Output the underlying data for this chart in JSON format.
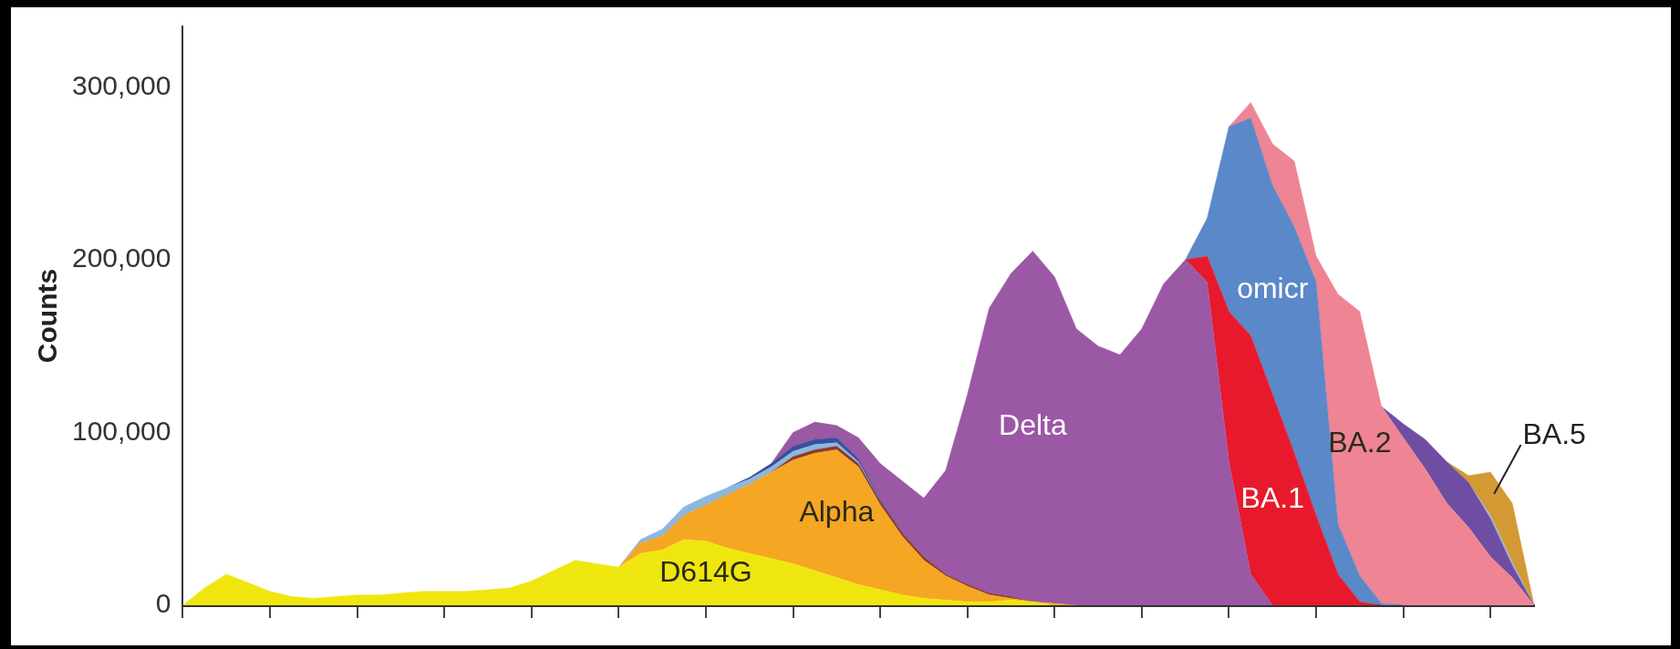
{
  "chart_data": {
    "type": "area",
    "stacked": true,
    "ylabel": "Counts",
    "ylim": [
      0,
      335000
    ],
    "yticks": [
      {
        "value": 0,
        "label": "0"
      },
      {
        "value": 100000,
        "label": "100,000"
      },
      {
        "value": 200000,
        "label": "200,000"
      },
      {
        "value": 300000,
        "label": "300,000"
      }
    ],
    "tick_labels": "y",
    "legend": false,
    "marker": "none",
    "categories": [
      null,
      null,
      null,
      null,
      null,
      null,
      null,
      null,
      null,
      null,
      null,
      null,
      null,
      null,
      null,
      null,
      null,
      null,
      null,
      null,
      null,
      null,
      null,
      null,
      null,
      null,
      null,
      null,
      null,
      null,
      null,
      null,
      null,
      null,
      null,
      null,
      null,
      null,
      null,
      null,
      null,
      null,
      null,
      null,
      null,
      null,
      null,
      null,
      null,
      null,
      null,
      null,
      null,
      null,
      null,
      null,
      null,
      null,
      null,
      null,
      null,
      null,
      null
    ],
    "series": [
      {
        "name": "D614G",
        "color": "#f0e60f",
        "values": [
          0,
          10000,
          18000,
          13000,
          8000,
          5000,
          4000,
          5000,
          6000,
          6000,
          7000,
          8000,
          8000,
          8000,
          9000,
          10000,
          14000,
          20000,
          26000,
          24000,
          22000,
          30000,
          32000,
          38000,
          37000,
          33000,
          30000,
          27000,
          24000,
          20000,
          16000,
          12000,
          9000,
          6000,
          4000,
          3000,
          2000,
          2000,
          3000,
          2000,
          0,
          null,
          null,
          null,
          null,
          null,
          null,
          null,
          null,
          null,
          null,
          null,
          null,
          null,
          null,
          null,
          null,
          null,
          null,
          null,
          null,
          null,
          null
        ]
      },
      {
        "name": "Alpha",
        "color": "#f5a623",
        "values": [
          null,
          null,
          null,
          null,
          null,
          null,
          null,
          null,
          null,
          null,
          null,
          null,
          null,
          null,
          null,
          null,
          null,
          null,
          null,
          null,
          0,
          6000,
          8000,
          14000,
          21000,
          31000,
          40000,
          50000,
          60000,
          68000,
          74000,
          68000,
          49000,
          34000,
          22000,
          14000,
          9000,
          4000,
          1000,
          0,
          1000,
          0,
          null,
          null,
          null,
          null,
          null,
          null,
          null,
          null,
          null,
          null,
          null,
          null,
          null,
          null,
          null,
          null,
          null,
          null,
          null,
          null,
          null
        ]
      },
      {
        "color": "#8b3a2e",
        "values": [
          null,
          null,
          null,
          null,
          null,
          null,
          null,
          null,
          null,
          null,
          null,
          null,
          null,
          null,
          null,
          null,
          null,
          null,
          null,
          null,
          null,
          null,
          null,
          null,
          null,
          null,
          null,
          0,
          2000,
          2000,
          2000,
          2000,
          2000,
          2000,
          2000,
          1000,
          1000,
          1000,
          1000,
          0,
          null,
          null,
          null,
          null,
          null,
          null,
          null,
          null,
          null,
          null,
          null,
          null,
          null,
          null,
          null,
          null,
          null,
          null,
          null,
          null,
          null,
          null,
          null
        ]
      },
      {
        "color": "#8db7dd",
        "values": [
          null,
          null,
          null,
          null,
          null,
          null,
          null,
          null,
          null,
          null,
          null,
          null,
          null,
          null,
          null,
          null,
          null,
          null,
          null,
          null,
          0,
          2000,
          4000,
          5000,
          5000,
          4000,
          3000,
          3000,
          3000,
          3000,
          2000,
          1000,
          0,
          null,
          null,
          null,
          null,
          null,
          null,
          null,
          null,
          null,
          null,
          null,
          null,
          null,
          null,
          null,
          null,
          null,
          null,
          null,
          null,
          null,
          null,
          null,
          null,
          null,
          null,
          null,
          null,
          null,
          null
        ]
      },
      {
        "color": "#3b4e9c",
        "values": [
          null,
          null,
          null,
          null,
          null,
          null,
          null,
          null,
          null,
          null,
          null,
          null,
          null,
          null,
          null,
          null,
          null,
          null,
          null,
          null,
          null,
          null,
          null,
          null,
          null,
          0,
          1000,
          2000,
          3000,
          3000,
          3000,
          2000,
          1000,
          0,
          null,
          null,
          null,
          null,
          null,
          null,
          null,
          null,
          null,
          null,
          null,
          null,
          null,
          null,
          null,
          null,
          null,
          null,
          null,
          null,
          null,
          null,
          null,
          null,
          null,
          null,
          null,
          null,
          null
        ]
      },
      {
        "name": "Delta",
        "color": "#9b58a5",
        "values": [
          null,
          null,
          null,
          null,
          null,
          null,
          null,
          null,
          null,
          null,
          null,
          null,
          null,
          null,
          null,
          null,
          null,
          null,
          null,
          null,
          null,
          null,
          null,
          null,
          null,
          null,
          null,
          0,
          8000,
          10000,
          7000,
          12000,
          21000,
          30000,
          34000,
          60000,
          110000,
          165000,
          187000,
          203000,
          189000,
          160000,
          150000,
          145000,
          160000,
          186000,
          200000,
          187000,
          83000,
          18000,
          0,
          null,
          null,
          null,
          null,
          null,
          null,
          null,
          null,
          null,
          null,
          null,
          null
        ]
      },
      {
        "name": "BA.1",
        "color": "#e8192c",
        "values": [
          null,
          null,
          null,
          null,
          null,
          null,
          null,
          null,
          null,
          null,
          null,
          null,
          null,
          null,
          null,
          null,
          null,
          null,
          null,
          null,
          null,
          null,
          null,
          null,
          null,
          null,
          null,
          null,
          null,
          null,
          null,
          null,
          null,
          null,
          null,
          null,
          null,
          null,
          null,
          null,
          null,
          null,
          null,
          null,
          null,
          null,
          0,
          15000,
          87000,
          138000,
          122000,
          88000,
          52000,
          18000,
          2000,
          0,
          null,
          null,
          null,
          null,
          null,
          null,
          null
        ]
      },
      {
        "name": "omicr",
        "color": "#5b88c8",
        "values": [
          null,
          null,
          null,
          null,
          null,
          null,
          null,
          null,
          null,
          null,
          null,
          null,
          null,
          null,
          null,
          null,
          null,
          null,
          null,
          null,
          null,
          null,
          null,
          null,
          null,
          null,
          null,
          null,
          null,
          null,
          null,
          null,
          null,
          null,
          null,
          null,
          null,
          null,
          null,
          null,
          null,
          null,
          null,
          null,
          null,
          null,
          0,
          22000,
          107000,
          126000,
          121000,
          131000,
          135000,
          29000,
          15000,
          1000,
          0,
          null,
          null,
          null,
          null,
          null,
          null
        ]
      },
      {
        "name": "BA.2",
        "color": "#ef8494",
        "values": [
          null,
          null,
          null,
          null,
          null,
          null,
          null,
          null,
          null,
          null,
          null,
          null,
          null,
          null,
          null,
          null,
          null,
          null,
          null,
          null,
          null,
          null,
          null,
          null,
          null,
          null,
          null,
          null,
          null,
          null,
          null,
          null,
          null,
          null,
          null,
          null,
          null,
          null,
          null,
          null,
          null,
          null,
          null,
          null,
          null,
          null,
          null,
          null,
          0,
          9000,
          24000,
          38000,
          15000,
          133000,
          153000,
          114000,
          97000,
          79000,
          59000,
          45000,
          28000,
          16000,
          0
        ]
      },
      {
        "color": "#6e4ea3",
        "values": [
          null,
          null,
          null,
          null,
          null,
          null,
          null,
          null,
          null,
          null,
          null,
          null,
          null,
          null,
          null,
          null,
          null,
          null,
          null,
          null,
          null,
          null,
          null,
          null,
          null,
          null,
          null,
          null,
          null,
          null,
          null,
          null,
          null,
          null,
          null,
          null,
          null,
          null,
          null,
          null,
          null,
          null,
          null,
          null,
          null,
          null,
          null,
          null,
          null,
          null,
          null,
          null,
          null,
          null,
          null,
          0,
          8000,
          17000,
          24000,
          26000,
          22000,
          7000,
          0
        ]
      },
      {
        "color": "#9cb6d8",
        "values": [
          null,
          null,
          null,
          null,
          null,
          null,
          null,
          null,
          null,
          null,
          null,
          null,
          null,
          null,
          null,
          null,
          null,
          null,
          null,
          null,
          null,
          null,
          null,
          null,
          null,
          null,
          null,
          null,
          null,
          null,
          null,
          null,
          null,
          null,
          null,
          null,
          null,
          null,
          null,
          null,
          null,
          null,
          null,
          null,
          null,
          null,
          null,
          null,
          null,
          null,
          null,
          null,
          null,
          null,
          null,
          null,
          null,
          null,
          null,
          0,
          2000,
          2000,
          0
        ]
      },
      {
        "name": "BA.5",
        "color": "#d39a33",
        "values": [
          null,
          null,
          null,
          null,
          null,
          null,
          null,
          null,
          null,
          null,
          null,
          null,
          null,
          null,
          null,
          null,
          null,
          null,
          null,
          null,
          null,
          null,
          null,
          null,
          null,
          null,
          null,
          null,
          null,
          null,
          null,
          null,
          null,
          null,
          null,
          null,
          null,
          null,
          null,
          null,
          null,
          null,
          null,
          null,
          null,
          null,
          null,
          null,
          null,
          null,
          null,
          null,
          null,
          null,
          null,
          null,
          null,
          null,
          0,
          4000,
          25000,
          34000,
          0
        ]
      }
    ]
  }
}
